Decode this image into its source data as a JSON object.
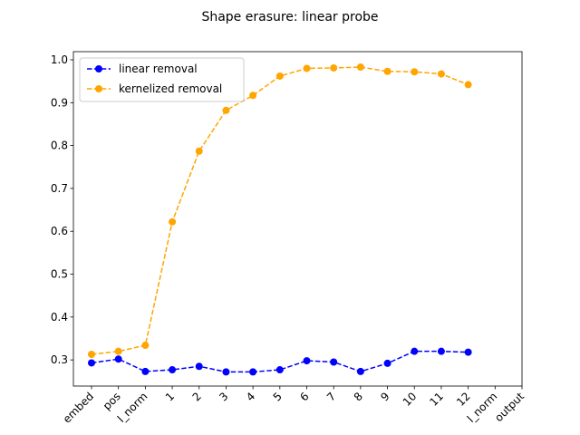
{
  "chart_data": {
    "type": "line",
    "title": "Shape erasure: linear probe",
    "categories": [
      "embed",
      "pos",
      "l_norm",
      "1",
      "2",
      "3",
      "4",
      "5",
      "6",
      "7",
      "8",
      "9",
      "10",
      "11",
      "12",
      "l_norm",
      "output"
    ],
    "series": [
      {
        "name": "linear removal",
        "color": "#0000ff",
        "values": [
          0.293,
          0.302,
          0.273,
          0.277,
          0.285,
          0.272,
          0.272,
          0.277,
          0.298,
          0.295,
          0.273,
          0.292,
          0.32,
          0.32,
          0.318,
          null,
          null
        ]
      },
      {
        "name": "kernelized removal",
        "color": "#ffa500",
        "values": [
          0.313,
          0.32,
          0.334,
          0.622,
          0.787,
          0.882,
          0.917,
          0.962,
          0.98,
          0.981,
          0.983,
          0.973,
          0.972,
          0.967,
          0.942,
          null,
          null
        ]
      }
    ],
    "ylim": [
      0.239,
      1.019
    ],
    "yticks": [
      {
        "value": 0.3,
        "label": "0.3"
      },
      {
        "value": 0.4,
        "label": "0.4"
      },
      {
        "value": 0.5,
        "label": "0.5"
      },
      {
        "value": 0.6,
        "label": "0.6"
      },
      {
        "value": 0.7,
        "label": "0.7"
      },
      {
        "value": 0.8,
        "label": "0.8"
      },
      {
        "value": 0.9,
        "label": "0.9"
      },
      {
        "value": 1.0,
        "label": "1.0"
      }
    ],
    "legend": "upper left",
    "grid": false
  }
}
